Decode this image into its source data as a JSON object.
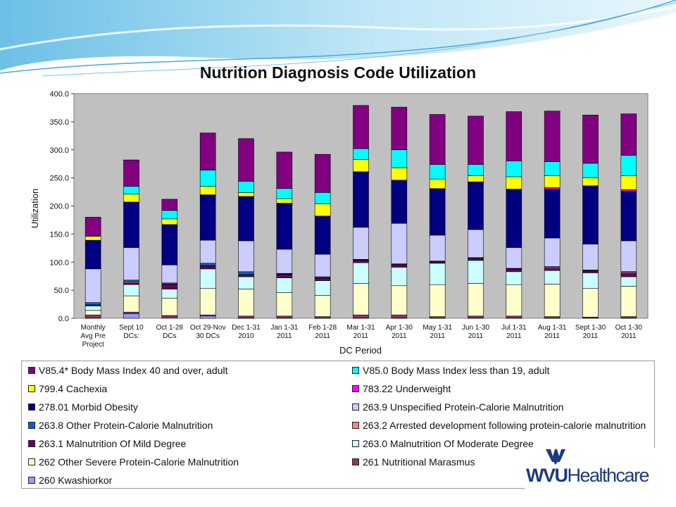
{
  "chart_data": {
    "type": "bar",
    "stacked": true,
    "title": "Nutrition Diagnosis Code Utilization",
    "xlabel": "DC Period",
    "ylabel": "Utilization",
    "ylim": [
      0,
      400
    ],
    "yticks": [
      "0.0",
      "50.0",
      "100.0",
      "150.0",
      "200.0",
      "250.0",
      "300.0",
      "350.0",
      "400.0"
    ],
    "grid": false,
    "legend_position": "bottom",
    "categories": [
      [
        "Monthly",
        "Avg Pre",
        "Project"
      ],
      [
        "Sept 10",
        "DCs:"
      ],
      [
        "Oct 1-28",
        "DCs"
      ],
      [
        "Oct 29-Nov",
        "30 DCs"
      ],
      [
        "Dec 1-31",
        "2010"
      ],
      [
        "Jan 1-31",
        "2011"
      ],
      [
        "Feb 1-28",
        "2011"
      ],
      [
        "Mar 1-31",
        "2011"
      ],
      [
        "Apr 1-30",
        "2011"
      ],
      [
        "May 1-31",
        "2011"
      ],
      [
        "Jun 1-30",
        "2011"
      ],
      [
        "Jul 1-31",
        "2011"
      ],
      [
        "Aug 1-31",
        "2011"
      ],
      [
        "Sept 1-30",
        "2011"
      ],
      [
        "Oct 1-30",
        "2011"
      ]
    ],
    "series": [
      {
        "name": "260 Kwashiorkor",
        "color": "#9999ff",
        "values": [
          1,
          8,
          2,
          4,
          1,
          1,
          1,
          1,
          1,
          1,
          1,
          1,
          1,
          1,
          1
        ]
      },
      {
        "name": "261 Nutritional Marasmus",
        "color": "#993366",
        "values": [
          5,
          3,
          3,
          2,
          3,
          3,
          2,
          5,
          5,
          2,
          3,
          3,
          2,
          1,
          2
        ]
      },
      {
        "name": "262 Other Severe Protein-Calorie Malnutrition",
        "color": "#ffffcc",
        "values": [
          8,
          29,
          31,
          47,
          48,
          42,
          38,
          56,
          52,
          57,
          58,
          56,
          58,
          51,
          54
        ]
      },
      {
        "name": "263.0 Malnutrition Of Moderate Degree",
        "color": "#ccffff",
        "values": [
          8,
          20,
          16,
          35,
          22,
          26,
          26,
          37,
          33,
          38,
          41,
          23,
          24,
          28,
          17
        ]
      },
      {
        "name": "263.1 Malnutrition Of Mild Degree",
        "color": "#660066",
        "values": [
          2,
          3,
          8,
          5,
          3,
          6,
          4,
          4,
          4,
          2,
          3,
          4,
          4,
          3,
          6
        ]
      },
      {
        "name": "263.2 Arrested development following protein-calorie malnutrition",
        "color": "#ff8080",
        "values": [
          0,
          2,
          1,
          1,
          1,
          1,
          1,
          1,
          1,
          1,
          1,
          1,
          2,
          1,
          2
        ]
      },
      {
        "name": "263.8 Other Protein-Calorie Malnutrition",
        "color": "#0066cc",
        "values": [
          4,
          3,
          2,
          4,
          5,
          1,
          2,
          1,
          1,
          1,
          1,
          1,
          1,
          1,
          1
        ]
      },
      {
        "name": "263.9 Unspecified Protein-Calorie Malnutrition",
        "color": "#ccccff",
        "values": [
          60,
          58,
          32,
          41,
          55,
          43,
          40,
          57,
          72,
          46,
          50,
          37,
          51,
          46,
          55
        ]
      },
      {
        "name": "278.01 Morbid Obesity",
        "color": "#000080",
        "values": [
          51,
          80,
          71,
          80,
          78,
          81,
          67,
          98,
          76,
          82,
          84,
          103,
          87,
          103,
          88
        ]
      },
      {
        "name": "783.22 Underweight",
        "color": "#ff00ff",
        "values": [
          0,
          1,
          1,
          1,
          1,
          1,
          1,
          1,
          1,
          1,
          1,
          1,
          3,
          1,
          3
        ]
      },
      {
        "name": "799.4 Cachexia",
        "color": "#ffff00",
        "values": [
          7,
          14,
          10,
          15,
          7,
          8,
          22,
          22,
          22,
          17,
          11,
          22,
          21,
          14,
          25
        ]
      },
      {
        "name": "V85.0 Body Mass Index less than 19, adult",
        "color": "#00ffff",
        "values": [
          0,
          14,
          15,
          29,
          20,
          18,
          20,
          19,
          32,
          26,
          20,
          28,
          25,
          26,
          36
        ]
      },
      {
        "name": "V85.4* Body Mass Index 40 and over, adult",
        "color": "#800080",
        "values": [
          34,
          47,
          20,
          66,
          76,
          65,
          68,
          77,
          76,
          89,
          86,
          88,
          90,
          86,
          74
        ]
      }
    ]
  },
  "legend": {
    "entries": [
      {
        "label": "V85.4* Body Mass Index 40 and over, adult",
        "color": "#800080"
      },
      {
        "label": "V85.0 Body Mass Index less than 19, adult",
        "color": "#00ffff"
      },
      {
        "label": "799.4 Cachexia",
        "color": "#ffff00"
      },
      {
        "label": "783.22 Underweight",
        "color": "#ff00ff"
      },
      {
        "label": "278.01 Morbid Obesity",
        "color": "#000080"
      },
      {
        "label": "263.9 Unspecified Protein-Calorie Malnutrition",
        "color": "#ccccff"
      },
      {
        "label": "263.8 Other Protein-Calorie Malnutrition",
        "color": "#0066cc"
      },
      {
        "label": "263.2 Arrested development following protein-calorie malnutrition",
        "color": "#ff8080"
      },
      {
        "label": "263.1 Malnutrition Of Mild Degree",
        "color": "#660066"
      },
      {
        "label": "263.0 Malnutrition Of Moderate Degree",
        "color": "#ccffff"
      },
      {
        "label": "262 Other Severe Protein-Calorie Malnutrition",
        "color": "#ffffcc"
      },
      {
        "label": "261 Nutritional Marasmus",
        "color": "#993366"
      },
      {
        "label": "260 Kwashiorkor",
        "color": "#9999ff"
      }
    ]
  },
  "logo": {
    "text_a": "WVU",
    "text_b": "Healthcare",
    "color": "#1c3a82",
    "icon": "wvu-flying-wv-icon"
  },
  "colors": {
    "plot_background": "#c0c0c0",
    "swoosh": "#5fb4dd"
  }
}
